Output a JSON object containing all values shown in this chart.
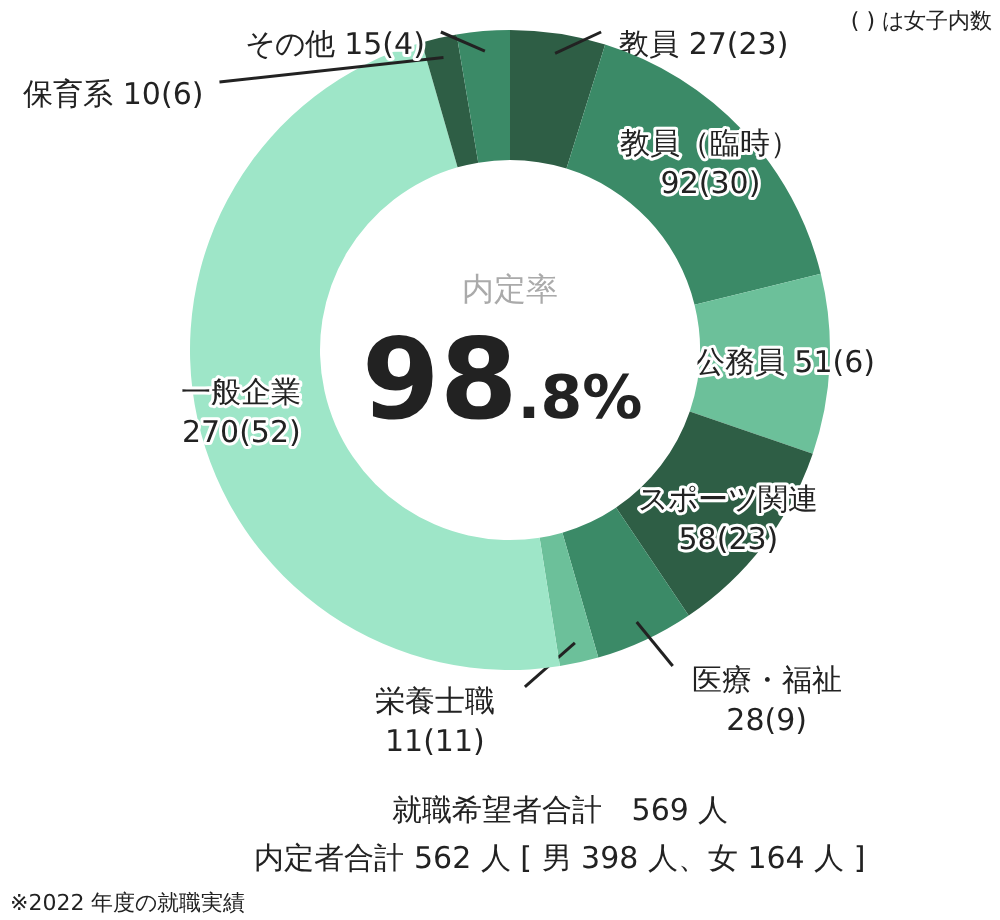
{
  "chart_data": {
    "type": "donut",
    "categories": [
      "教員",
      "教員（臨時）",
      "公務員",
      "スポーツ関連",
      "医療・福祉",
      "栄養士職",
      "一般企業",
      "保育系",
      "その他"
    ],
    "values": [
      27,
      92,
      51,
      58,
      28,
      11,
      270,
      10,
      15
    ],
    "value_labels": [
      "27(23)",
      "92(30)",
      "51(6)",
      "58(23)",
      "28(9)",
      "11(11)",
      "270(52)",
      "10(6)",
      "15(4)"
    ],
    "colors": [
      "#2e5e45",
      "#3b8a67",
      "#6cc09a",
      "#2e5e45",
      "#3b8a67",
      "#6cc09a",
      "#9ee6c8",
      "#2e5e45",
      "#3b8a67"
    ],
    "title": "98.8%",
    "subtitle": "内定率",
    "annotations": [
      "( ) は女子内数",
      "就職希望者合計　569 人",
      "内定者合計 562 人 [ 男 398 人、女 164 人 ]",
      "※2022 年度の就職実績"
    ]
  }
}
